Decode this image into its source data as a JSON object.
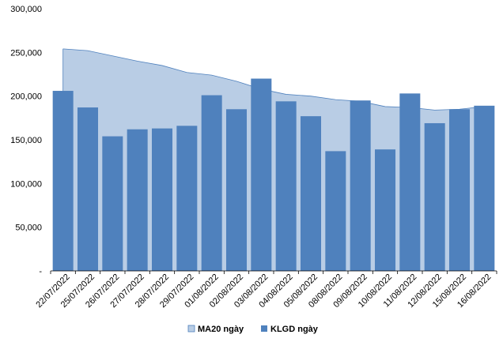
{
  "chart_data": {
    "type": "bar",
    "categories": [
      "22/07/2022",
      "25/07/2022",
      "26/07/2022",
      "27/07/2022",
      "28/07/2022",
      "29/07/2022",
      "01/08/2022",
      "02/08/2022",
      "03/08/2022",
      "04/08/2022",
      "05/08/2022",
      "08/08/2022",
      "09/08/2022",
      "10/08/2022",
      "11/08/2022",
      "12/08/2022",
      "15/08/2022",
      "16/08/2022"
    ],
    "ylim": [
      0,
      300000
    ],
    "yticks": [
      {
        "value": 0,
        "label": "-"
      },
      {
        "value": 50000,
        "label": "50,000"
      },
      {
        "value": 100000,
        "label": "100,000"
      },
      {
        "value": 150000,
        "label": "150,000"
      },
      {
        "value": 200000,
        "label": "200,000"
      },
      {
        "value": 250000,
        "label": "250,000"
      },
      {
        "value": 300000,
        "label": "300,000"
      }
    ],
    "grid": false,
    "legend_position": "bottom",
    "series": [
      {
        "name": "MA20 ngày",
        "kind": "area",
        "color": "#b9cde5",
        "edge_color": "#4f81bd",
        "values": [
          254000,
          252000,
          246000,
          240000,
          235000,
          227000,
          224000,
          217000,
          208000,
          202000,
          200000,
          196000,
          194000,
          188000,
          187000,
          184000,
          185000,
          188000
        ]
      },
      {
        "name": "KLGD ngày",
        "kind": "bar",
        "color": "#4f81bd",
        "values": [
          206000,
          187000,
          154000,
          162000,
          163000,
          166000,
          201000,
          185000,
          220000,
          194000,
          177000,
          137000,
          195000,
          139000,
          203000,
          169000,
          185000,
          189000
        ]
      }
    ]
  }
}
